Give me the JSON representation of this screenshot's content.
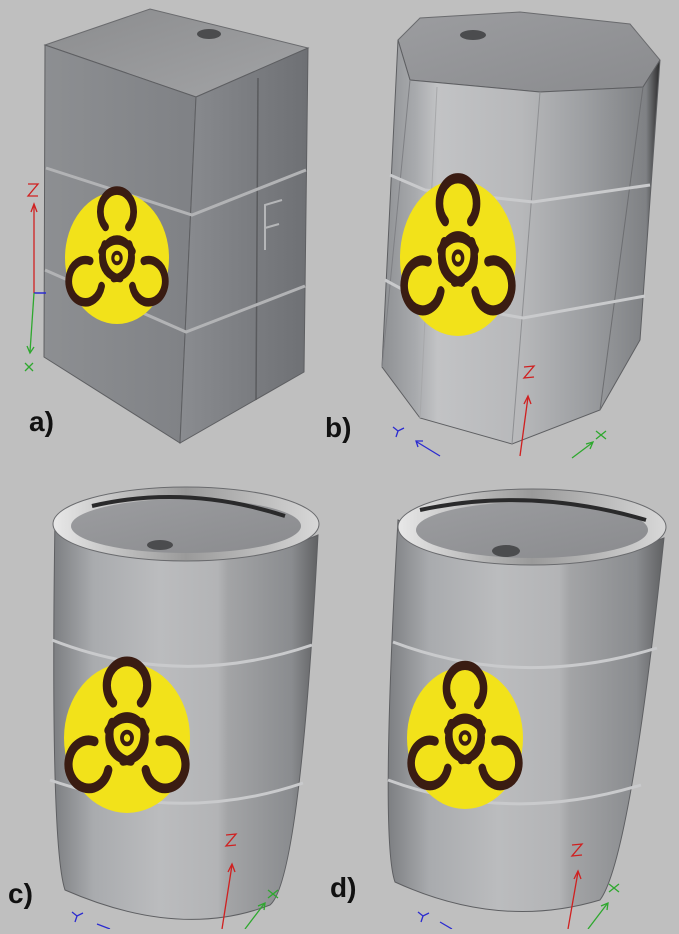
{
  "panels": [
    {
      "id": "a",
      "label": "a)",
      "shape": "box"
    },
    {
      "id": "b",
      "label": "b)",
      "shape": "octagonal-barrel"
    },
    {
      "id": "c",
      "label": "c)",
      "shape": "barrel"
    },
    {
      "id": "d",
      "label": "d)",
      "shape": "barrel"
    }
  ],
  "colors": {
    "background": "#bfbfbf",
    "metal": "#9a9a9a",
    "hazard_yellow": "#f2e21a",
    "hazard_symbol": "#3a1c12",
    "axis_x": "#2ea82e",
    "axis_y": "#2b2bd0",
    "axis_z": "#d02020"
  },
  "icons": [
    "biohazard-icon",
    "axis-gizmo-icon"
  ]
}
